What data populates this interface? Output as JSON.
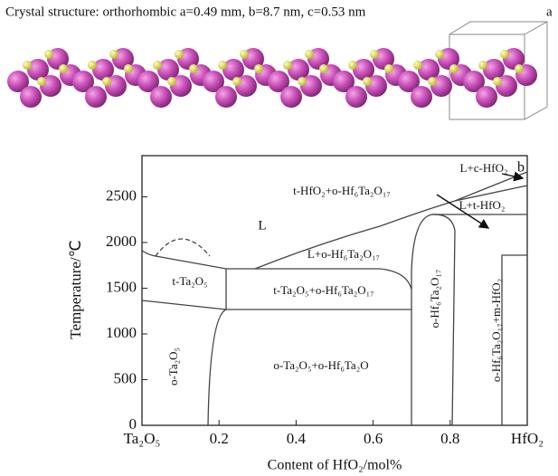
{
  "caption": "Crystal structure: orthorhombic a=0.49 mm, b=8.7 nm, c=0.53 nm",
  "panel_a_label": "a",
  "phase_diagram": {
    "panel_label": "b",
    "xlabel": "Content of HfO₂/mol%",
    "ylabel": "Temperature/℃",
    "xlim": [
      0,
      1
    ],
    "ylim": [
      0,
      2950
    ],
    "xticks": [
      {
        "value": 0,
        "label": "Ta₂O₅"
      },
      0.2,
      0.4,
      0.6,
      0.8,
      {
        "value": 1,
        "label": "HfO₂"
      }
    ],
    "yticks": [
      0,
      500,
      1000,
      1500,
      2000,
      2500
    ],
    "regions": [
      "L+c-HfO₂",
      "t-HfO₂+o-Hf₆Ta₂O₁₇",
      "L+t-HfO₂",
      "L",
      "L+o-Hf₆Ta₂O₁₇",
      "t-Ta₂O₅",
      "t-Ta₂O₅+o-Hf₆Ta₂O₁₇",
      "o-Hf₆Ta₂O₁₇",
      "o-Hf₆Ta₂O₁₇+m-HfO₂",
      "o-Ta₂O₅",
      "o-Ta₂O₅+o-Hf₆Ta₂O"
    ]
  }
}
